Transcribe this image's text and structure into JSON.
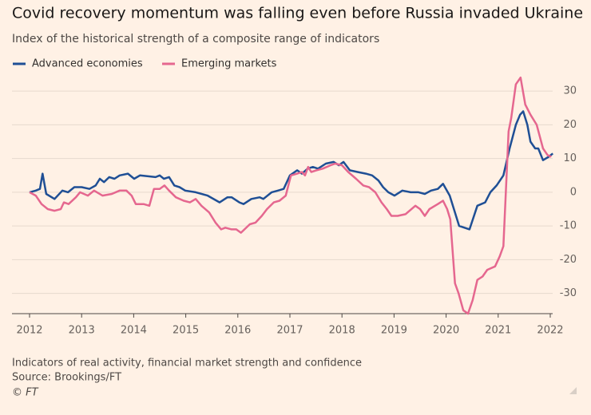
{
  "chart_data": {
    "type": "line",
    "title": "Covid recovery momentum was falling even before Russia invaded Ukraine",
    "subtitle": "Index of the historical strength of a composite range of indicators",
    "series": [
      {
        "name": "Advanced economies",
        "color": "#1f4f95",
        "x": [
          2012.0,
          2012.12,
          2012.2,
          2012.25,
          2012.32,
          2012.48,
          2012.63,
          2012.74,
          2012.86,
          2013.0,
          2013.15,
          2013.27,
          2013.35,
          2013.43,
          2013.53,
          2013.63,
          2013.73,
          2013.89,
          2014.01,
          2014.12,
          2014.42,
          2014.5,
          2014.58,
          2014.68,
          2014.78,
          2014.88,
          2014.99,
          2015.19,
          2015.42,
          2015.65,
          2015.8,
          2015.88,
          2016.03,
          2016.11,
          2016.26,
          2016.42,
          2016.49,
          2016.65,
          2016.77,
          2016.88,
          2017.0,
          2017.14,
          2017.23,
          2017.34,
          2017.44,
          2017.54,
          2017.69,
          2017.84,
          2017.94,
          2018.03,
          2018.15,
          2018.3,
          2018.46,
          2018.58,
          2018.7,
          2018.79,
          2018.89,
          2019.01,
          2019.16,
          2019.32,
          2019.47,
          2019.59,
          2019.71,
          2019.84,
          2019.94,
          2020.07,
          2020.25,
          2020.45,
          2020.6,
          2020.75,
          2020.85,
          2020.97,
          2021.1,
          2021.22,
          2021.34,
          2021.42,
          2021.48,
          2021.56,
          2021.62,
          2021.71,
          2021.77,
          2021.86,
          2021.97,
          2022.05
        ],
        "values": [
          0,
          0.5,
          1,
          5.5,
          -0.5,
          -2,
          0.5,
          0,
          1.5,
          1.5,
          1,
          2,
          4,
          3,
          4.5,
          4,
          5,
          5.5,
          4,
          5,
          4.5,
          5,
          4,
          4.5,
          2,
          1.5,
          0.5,
          0,
          -1,
          -3,
          -1.5,
          -1.5,
          -3,
          -3.5,
          -2,
          -1.5,
          -2,
          0,
          0.5,
          1,
          5,
          6.5,
          5.5,
          7,
          7.5,
          7,
          8.5,
          9,
          8,
          9,
          6.5,
          6,
          5.5,
          5,
          3.5,
          1.5,
          0,
          -1,
          0.5,
          0,
          0,
          -0.5,
          0.5,
          1,
          2.5,
          -1,
          -10,
          -11,
          -4,
          -3,
          0,
          2,
          5,
          13,
          20,
          23,
          24,
          20,
          15,
          13,
          13,
          9.5,
          10.5,
          11.5
        ]
      },
      {
        "name": "Emerging markets",
        "color": "#e5678f",
        "x": [
          2012.0,
          2012.12,
          2012.23,
          2012.35,
          2012.48,
          2012.6,
          2012.66,
          2012.75,
          2012.89,
          2012.97,
          2013.12,
          2013.24,
          2013.4,
          2013.58,
          2013.73,
          2013.86,
          2013.96,
          2014.04,
          2014.19,
          2014.3,
          2014.39,
          2014.5,
          2014.59,
          2014.68,
          2014.81,
          2014.96,
          2015.08,
          2015.19,
          2015.3,
          2015.45,
          2015.57,
          2015.68,
          2015.76,
          2015.88,
          2015.97,
          2016.06,
          2016.23,
          2016.34,
          2016.46,
          2016.56,
          2016.69,
          2016.8,
          2016.92,
          2017.02,
          2017.14,
          2017.23,
          2017.29,
          2017.35,
          2017.41,
          2017.51,
          2017.63,
          2017.78,
          2017.87,
          2018.0,
          2018.12,
          2018.27,
          2018.41,
          2018.52,
          2018.64,
          2018.76,
          2018.86,
          2018.95,
          2019.07,
          2019.22,
          2019.41,
          2019.5,
          2019.59,
          2019.68,
          2019.84,
          2019.94,
          2020.02,
          2020.08,
          2020.17,
          2020.24,
          2020.33,
          2020.42,
          2020.51,
          2020.6,
          2020.7,
          2020.79,
          2020.94,
          2021.03,
          2021.1,
          2021.2,
          2021.25,
          2021.34,
          2021.43,
          2021.52,
          2021.62,
          2021.74,
          2021.86,
          2021.95,
          2022.02
        ],
        "values": [
          0,
          -1,
          -3.5,
          -5,
          -5.5,
          -5,
          -3,
          -3.5,
          -1.5,
          0,
          -1,
          0.5,
          -1,
          -0.5,
          0.5,
          0.5,
          -1,
          -3.5,
          -3.5,
          -4,
          1,
          1,
          2,
          0.5,
          -1.5,
          -2.5,
          -3,
          -2,
          -4,
          -6,
          -9,
          -11,
          -10.5,
          -11,
          -11,
          -12,
          -9.5,
          -9,
          -7,
          -5,
          -3,
          -2.5,
          -1,
          5,
          5.5,
          6,
          5,
          7.5,
          6,
          6.5,
          7,
          8,
          8.5,
          8,
          6,
          4,
          2,
          1.5,
          0,
          -3,
          -5,
          -7,
          -7,
          -6.5,
          -4,
          -5,
          -7,
          -5,
          -3.5,
          -2.5,
          -5,
          -8,
          -27,
          -30,
          -35,
          -36,
          -32,
          -26,
          -25,
          -23,
          -22,
          -19,
          -16,
          18,
          22,
          32,
          34,
          26,
          23,
          20,
          13,
          11,
          10.5
        ]
      }
    ],
    "xlim": [
      2012,
      2022.1
    ],
    "xticks": [
      2012,
      2013,
      2014,
      2015,
      2016,
      2017,
      2018,
      2019,
      2020,
      2021,
      2022
    ],
    "ylim": [
      -36,
      35
    ],
    "yticks": [
      -30,
      -20,
      -10,
      0,
      10,
      20,
      30
    ],
    "grid": true,
    "notes": [
      "Indicators of real activity, financial market strength and confidence",
      "Source: Brookings/FT",
      "© FT"
    ]
  }
}
